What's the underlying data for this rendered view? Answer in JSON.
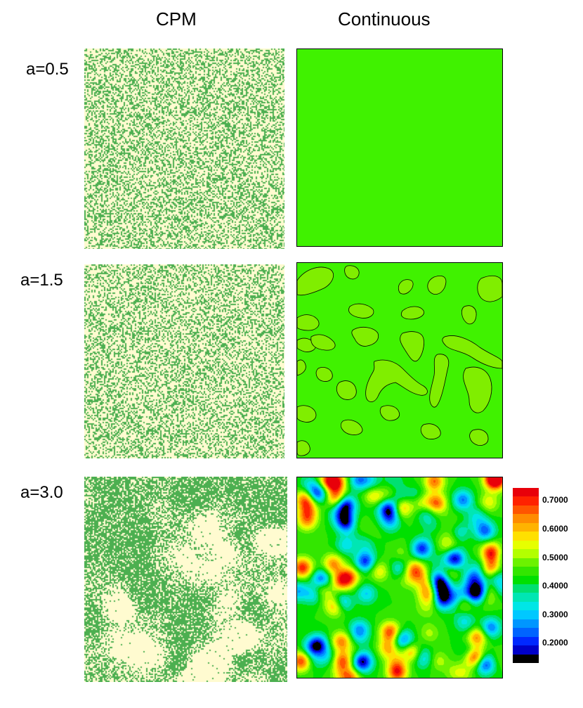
{
  "columns": {
    "left": "CPM",
    "right": "Continuous"
  },
  "rows": [
    {
      "label": "a=0.5"
    },
    {
      "label": "a=1.5"
    },
    {
      "label": "a=3.0"
    }
  ],
  "colors": {
    "cpm_background": "#fffbd0",
    "cpm_cell": "#4caf50",
    "uniform_field": "#40f200",
    "patch_field": "#80ee00",
    "contour_line": "#000000"
  },
  "colorbar": {
    "labels": [
      "0.7000",
      "0.6000",
      "0.5000",
      "0.4000",
      "0.3000",
      "0.2000"
    ],
    "colors": [
      "#e8000a",
      "#ff2200",
      "#ff5500",
      "#ff8c00",
      "#ffb300",
      "#ffe000",
      "#e6ff00",
      "#b3ff00",
      "#6cf200",
      "#33e600",
      "#00e000",
      "#00e070",
      "#00e6b3",
      "#00e6e6",
      "#00c8ff",
      "#0096ff",
      "#0064ff",
      "#0028ff",
      "#0000c8",
      "#000000"
    ]
  }
}
